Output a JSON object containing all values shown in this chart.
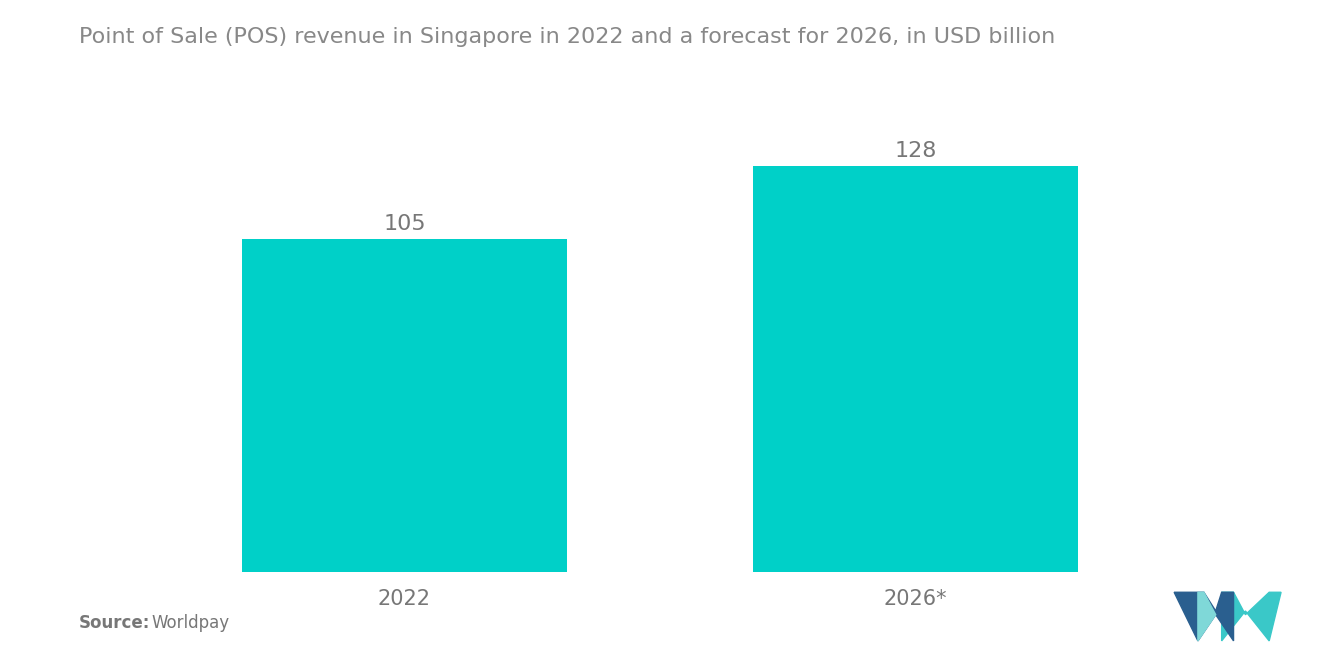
{
  "title": "Point of Sale (POS) revenue in Singapore in 2022 and a forecast for 2026, in USD billion",
  "categories": [
    "2022",
    "2026*"
  ],
  "values": [
    105,
    128
  ],
  "bar_color": "#00D0C8",
  "label_color": "#777777",
  "title_color": "#888888",
  "source_bold": "Source:",
  "source_text": "  Worldpay",
  "background_color": "#ffffff",
  "bar_width": 0.28,
  "ylim": [
    0,
    155
  ],
  "value_fontsize": 16,
  "xtick_fontsize": 15,
  "title_fontsize": 16,
  "source_fontsize": 12
}
